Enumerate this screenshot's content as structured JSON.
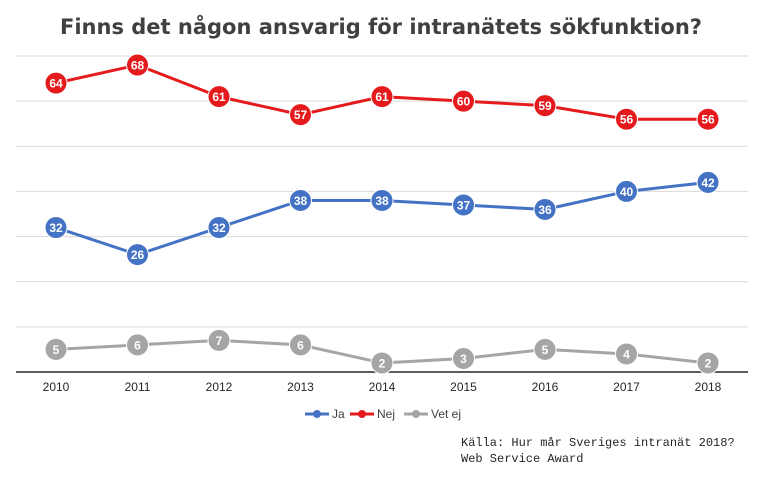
{
  "colors": {
    "ja": "#4472c4",
    "nej": "#e41a1c",
    "vet_ej": "#a5a5a5"
  },
  "source": {
    "line1": "Källa: Hur mår Sveriges intranät 2018?",
    "line2": "Web Service Award"
  },
  "chart_data": {
    "type": "line",
    "title": "Finns det någon ansvarig för intranätets sökfunktion?",
    "xlabel": "",
    "ylabel": "",
    "x": [
      "2010",
      "2011",
      "2012",
      "2013",
      "2014",
      "2015",
      "2016",
      "2017",
      "2018"
    ],
    "ylim": [
      0,
      70
    ],
    "grid": true,
    "legend_position": "bottom",
    "y_tick_labels_visible": false,
    "series": [
      {
        "name": "Ja",
        "color": "#4472c4",
        "values": [
          32,
          26,
          32,
          38,
          38,
          37,
          36,
          40,
          42
        ]
      },
      {
        "name": "Nej",
        "color": "#e41a1c",
        "values": [
          64,
          68,
          61,
          57,
          61,
          60,
          59,
          56,
          56
        ]
      },
      {
        "name": "Vet ej",
        "color": "#a5a5a5",
        "values": [
          5,
          6,
          7,
          6,
          2,
          3,
          5,
          4,
          2
        ]
      }
    ]
  }
}
